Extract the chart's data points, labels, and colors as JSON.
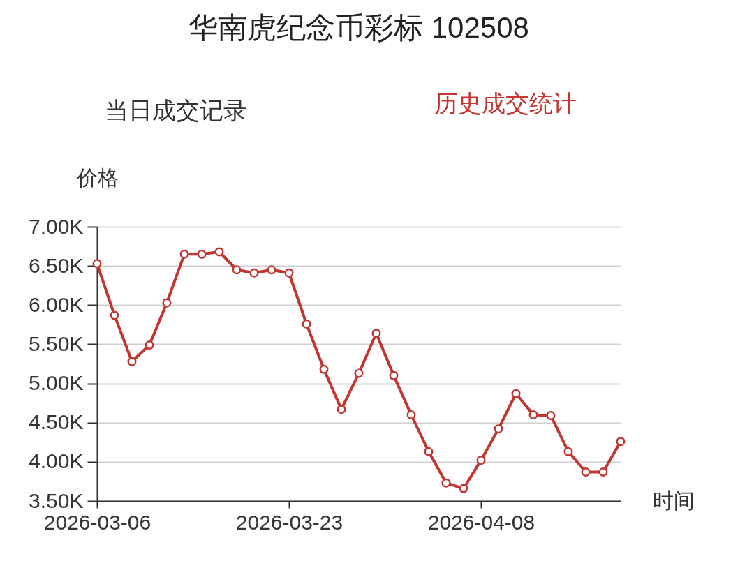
{
  "chart_data": {
    "type": "line",
    "title": "华南虎纪念币彩标 102508",
    "annotations": [
      "当日成交记录",
      "历史成交统计"
    ],
    "ylabel": "价格",
    "xlabel": "时间",
    "categories": [
      "2026-03-06",
      null,
      null,
      null,
      null,
      null,
      null,
      null,
      null,
      null,
      null,
      "2026-03-23",
      null,
      null,
      null,
      null,
      null,
      null,
      null,
      null,
      null,
      null,
      "2026-04-08",
      null,
      null,
      null,
      null,
      null,
      null,
      null,
      null
    ],
    "series": [
      {
        "color": "#c23531",
        "values": [
          6530,
          5870,
          5280,
          5490,
          6030,
          6650,
          6650,
          6680,
          6450,
          6410,
          6450,
          6410,
          5760,
          5180,
          4670,
          5130,
          5640,
          5100,
          4600,
          4130,
          3730,
          3660,
          4020,
          4420,
          4870,
          4600,
          4590,
          4130,
          3870,
          3870,
          4260
        ]
      }
    ],
    "ylim": [
      3500,
      7000
    ],
    "yticks": [
      {
        "value": 3500,
        "label": "3.50K"
      },
      {
        "value": 4000,
        "label": "4.00K"
      },
      {
        "value": 4500,
        "label": "4.50K"
      },
      {
        "value": 5000,
        "label": "5.00K"
      },
      {
        "value": 5500,
        "label": "5.50K"
      },
      {
        "value": 6000,
        "label": "6.00K"
      },
      {
        "value": 6500,
        "label": "6.50K"
      },
      {
        "value": 7000,
        "label": "7.00K"
      }
    ],
    "grid": "y",
    "legend": false,
    "marker": "circle",
    "line_style": "solid"
  }
}
